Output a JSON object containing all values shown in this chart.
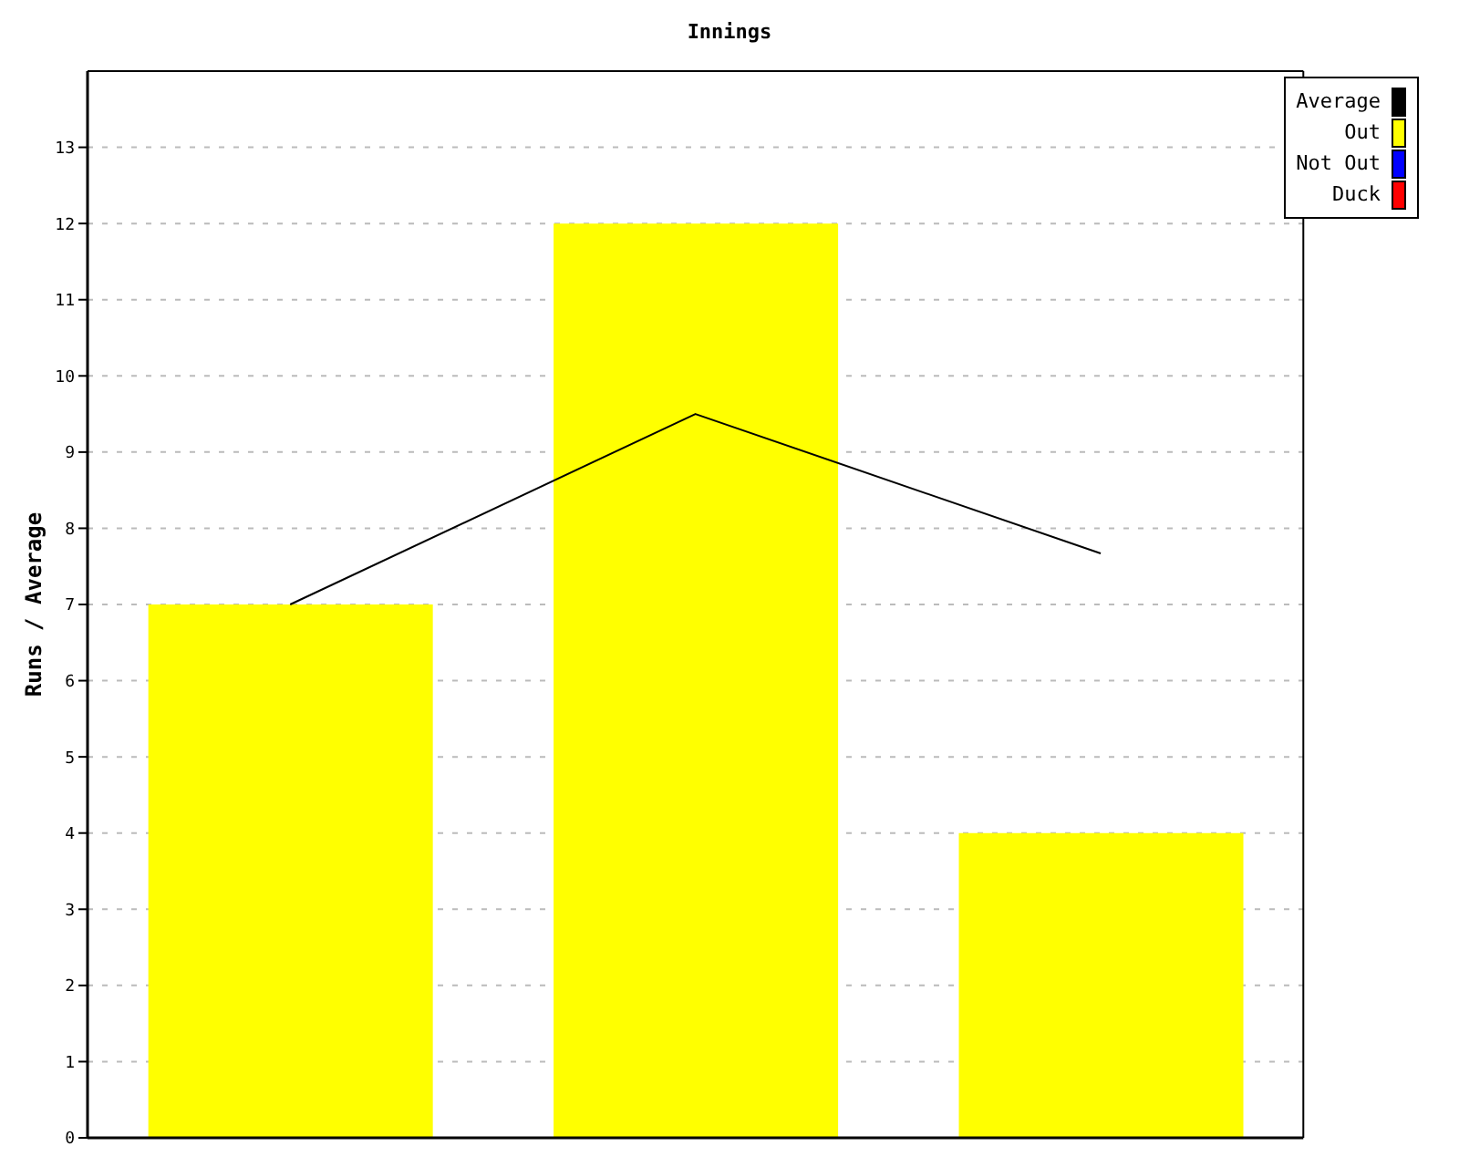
{
  "chart_data": {
    "type": "bar",
    "title": "Innings",
    "ylabel": "Runs / Average",
    "categories": [
      null,
      null,
      null
    ],
    "stacked": true,
    "series": [
      {
        "name": "Average",
        "type": "line",
        "color": "#000000",
        "values": [
          7,
          9.5,
          7.67
        ]
      },
      {
        "name": "Out",
        "color": "#ffff00",
        "values": [
          7,
          12,
          4
        ]
      },
      {
        "name": "Not Out",
        "color": "#0000ff",
        "values": [
          null,
          null,
          null
        ]
      },
      {
        "name": "Duck",
        "color": "#ff0000",
        "values": [
          null,
          null,
          null
        ]
      }
    ],
    "ylim": [
      0,
      14
    ],
    "yticks": [
      0,
      1,
      2,
      3,
      4,
      5,
      6,
      7,
      8,
      9,
      10,
      11,
      12,
      13
    ],
    "grid": "y",
    "legend": "top right",
    "marker": "none"
  }
}
